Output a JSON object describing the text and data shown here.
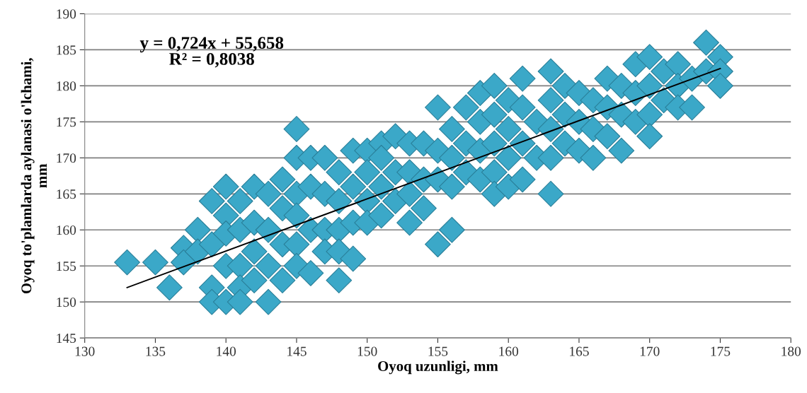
{
  "chart_data": {
    "type": "scatter",
    "xlabel": "Oyoq uzunligi, mm",
    "ylabel": "Oyoq to'plamlarda aylanasi o'lchami,\nmm",
    "xlim": [
      130,
      180
    ],
    "xticks": [
      130,
      135,
      140,
      145,
      150,
      155,
      160,
      165,
      170,
      175,
      180
    ],
    "ylim": [
      145,
      190
    ],
    "yticks": [
      145,
      150,
      155,
      160,
      165,
      170,
      175,
      180,
      185,
      190
    ],
    "grid": "y",
    "marker": "diamond",
    "annotations": [
      "y = 0,724x + 55,658\nR² = 0,8038"
    ],
    "series": [
      {
        "color": "#3ba8c8",
        "x": [
          133,
          135,
          136,
          137,
          137,
          138,
          138,
          139,
          139,
          139,
          139,
          140,
          140,
          140,
          140,
          140,
          141,
          141,
          141,
          141,
          141,
          142,
          142,
          142,
          142,
          143,
          143,
          143,
          143,
          144,
          144,
          144,
          144,
          145,
          145,
          145,
          145,
          145,
          145,
          146,
          146,
          146,
          146,
          147,
          147,
          147,
          147,
          148,
          148,
          148,
          148,
          148,
          149,
          149,
          149,
          149,
          150,
          150,
          150,
          150,
          151,
          151,
          151,
          151,
          152,
          152,
          152,
          153,
          153,
          153,
          153,
          154,
          154,
          154,
          155,
          155,
          155,
          155,
          156,
          156,
          156,
          156,
          157,
          157,
          157,
          158,
          158,
          158,
          158,
          159,
          159,
          159,
          159,
          159,
          160,
          160,
          160,
          160,
          161,
          161,
          161,
          161,
          162,
          162,
          163,
          163,
          163,
          163,
          163,
          164,
          164,
          164,
          165,
          165,
          165,
          166,
          166,
          166,
          167,
          167,
          167,
          168,
          168,
          168,
          169,
          169,
          169,
          170,
          170,
          170,
          170,
          171,
          171,
          172,
          172,
          172,
          173,
          173,
          174,
          174,
          175,
          175,
          175
        ],
        "values": [
          155.5,
          155.5,
          152,
          157.5,
          155.5,
          160,
          157,
          164,
          158,
          152,
          150,
          166,
          162,
          159.5,
          155,
          150,
          164,
          160,
          155,
          152,
          150,
          166,
          161,
          157,
          153,
          165,
          160,
          155,
          150,
          167,
          163,
          158,
          153,
          174,
          170,
          165,
          162,
          158,
          155,
          170,
          166,
          160,
          154,
          170,
          165,
          160,
          157,
          168,
          164,
          160,
          157,
          153,
          171,
          166,
          161,
          156,
          171,
          168,
          164,
          161,
          172,
          170,
          166,
          162,
          173,
          168,
          164,
          172,
          168,
          165,
          161,
          172,
          167,
          163,
          177,
          171,
          167,
          158,
          174,
          170,
          166,
          160,
          177,
          172,
          168,
          179,
          175,
          171,
          167,
          180,
          176,
          172,
          168,
          165,
          178,
          174,
          170,
          166,
          181,
          177,
          172,
          167,
          175,
          170,
          182,
          178,
          174,
          170,
          165,
          180,
          176,
          172,
          179,
          175,
          171,
          178,
          174,
          170,
          181,
          177,
          173,
          180,
          176,
          171,
          183,
          179,
          175,
          184,
          180,
          176,
          173,
          182,
          178,
          183,
          180,
          177,
          181,
          177,
          186,
          182,
          184,
          182,
          180
        ]
      },
      {
        "type": "line",
        "color": "#000000",
        "marker": "none",
        "x": [
          133,
          175
        ],
        "values": [
          152.0,
          182.4
        ]
      }
    ]
  }
}
